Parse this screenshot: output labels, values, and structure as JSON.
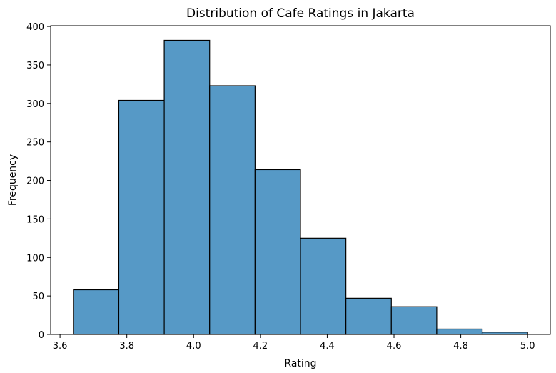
{
  "chart_data": {
    "type": "bar",
    "title": "Distribution of Cafe Ratings in Jakarta",
    "xlabel": "Rating",
    "ylabel": "Frequency",
    "bins": [
      {
        "x0": 3.64,
        "x1": 3.776,
        "value": 58
      },
      {
        "x0": 3.776,
        "x1": 3.912,
        "value": 304
      },
      {
        "x0": 3.912,
        "x1": 4.048,
        "value": 382
      },
      {
        "x0": 4.048,
        "x1": 4.184,
        "value": 323
      },
      {
        "x0": 4.184,
        "x1": 4.32,
        "value": 214
      },
      {
        "x0": 4.32,
        "x1": 4.456,
        "value": 125
      },
      {
        "x0": 4.456,
        "x1": 4.592,
        "value": 47
      },
      {
        "x0": 4.592,
        "x1": 4.728,
        "value": 36
      },
      {
        "x0": 4.728,
        "x1": 4.864,
        "value": 7
      },
      {
        "x0": 4.864,
        "x1": 5.0,
        "value": 3
      }
    ],
    "xlim": [
      3.572,
      5.068
    ],
    "ylim": [
      0,
      401
    ],
    "xticks": [
      "3.6",
      "3.8",
      "4.0",
      "4.2",
      "4.4",
      "4.6",
      "4.8",
      "5.0"
    ],
    "yticks": [
      "0",
      "50",
      "100",
      "150",
      "200",
      "250",
      "300",
      "350",
      "400"
    ],
    "grid": false,
    "color": "#5699c6"
  }
}
